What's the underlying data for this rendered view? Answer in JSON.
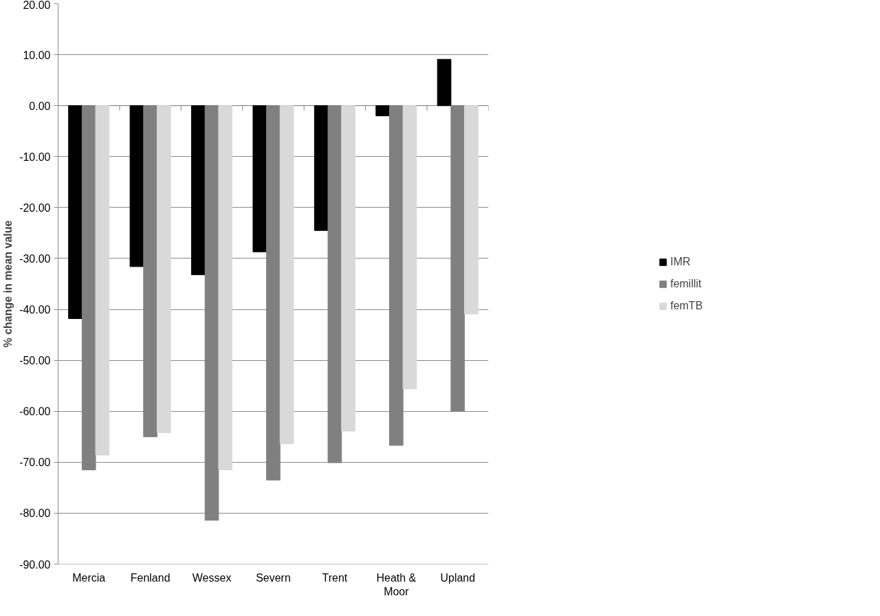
{
  "chart_data": {
    "type": "bar",
    "ylabel": "% change in mean value",
    "categories": [
      "Mercia",
      "Fenland",
      "Wessex",
      "Severn",
      "Trent",
      "Heath & Moor",
      "Upland"
    ],
    "series": [
      {
        "name": "IMR",
        "color": "#000000",
        "values": [
          -41.8,
          -31.6,
          -33.2,
          -28.7,
          -24.5,
          -2.0,
          9.1
        ]
      },
      {
        "name": "femillit",
        "color": "#808080",
        "values": [
          -71.5,
          -65.0,
          -81.4,
          -73.5,
          -70.1,
          -66.7,
          -60.0
        ]
      },
      {
        "name": "femTB",
        "color": "#d9d9d9",
        "values": [
          -68.6,
          -64.2,
          -71.5,
          -66.4,
          -63.9,
          -55.6,
          -40.9
        ]
      }
    ],
    "ylim": [
      -90,
      20
    ],
    "yticks": [
      {
        "value": 20,
        "label": "20.00"
      },
      {
        "value": 10,
        "label": "10.00"
      },
      {
        "value": 0,
        "label": "0.00"
      },
      {
        "value": -10,
        "label": "-10.00"
      },
      {
        "value": -20,
        "label": "-20.00"
      },
      {
        "value": -30,
        "label": "-30.00"
      },
      {
        "value": -40,
        "label": "-40.00"
      },
      {
        "value": -50,
        "label": "-50.00"
      },
      {
        "value": -60,
        "label": "-60.00"
      },
      {
        "value": -70,
        "label": "-70.00"
      },
      {
        "value": -80,
        "label": "-80.00"
      },
      {
        "value": -90,
        "label": "-90.00"
      }
    ],
    "grid": "y",
    "legend": "right"
  }
}
